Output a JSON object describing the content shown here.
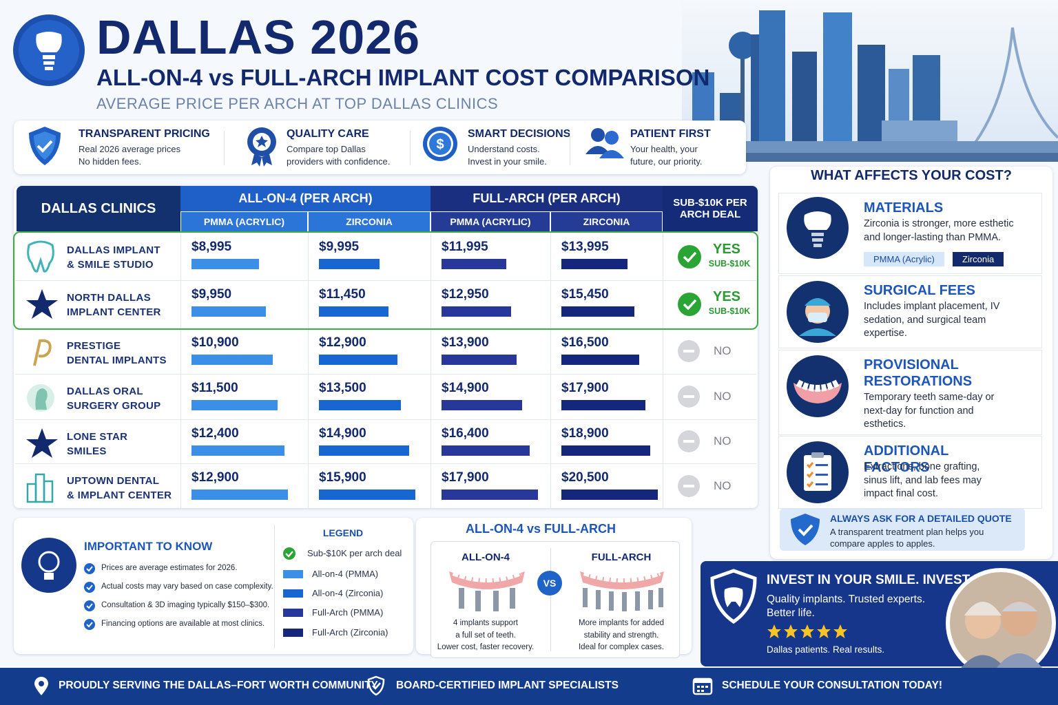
{
  "header": {
    "title": "DALLAS 2026",
    "subtitle": "ALL-ON-4 vs FULL-ARCH IMPLANT COST COMPARISON",
    "tagline": "AVERAGE PRICE PER ARCH AT TOP DALLAS CLINICS"
  },
  "features": [
    {
      "title": "TRANSPARENT PRICING",
      "lines": [
        "Real 2026 average prices",
        "No hidden fees."
      ]
    },
    {
      "title": "QUALITY CARE",
      "lines": [
        "Compare top Dallas",
        "providers with confidence."
      ]
    },
    {
      "title": "SMART DECISIONS",
      "lines": [
        "Understand costs.",
        "Invest in your smile."
      ]
    },
    {
      "title": "PATIENT FIRST",
      "lines": [
        "Your health, your",
        "future, our priority."
      ]
    }
  ],
  "table": {
    "corner": "DALLAS CLINICS",
    "groups": [
      "ALL-ON-4 (PER ARCH)",
      "FULL-ARCH (PER ARCH)"
    ],
    "columns": [
      {
        "label": "PMMA (ACRYLIC)",
        "color": "#3b8fe6"
      },
      {
        "label": "ZIRCONIA",
        "color": "#1766d2"
      },
      {
        "label": "PMMA (ACRYLIC)",
        "color": "#27389a"
      },
      {
        "label": "ZIRCONIA",
        "color": "#15277c"
      }
    ],
    "deal_header": "SUB-$10K PER ARCH DEAL",
    "rows": [
      {
        "clinic": [
          "DALLAS IMPLANT",
          "& SMILE STUDIO"
        ],
        "prices": [
          {
            "value": 8995,
            "label": "$8,995"
          },
          {
            "value": 9995,
            "label": "$9,995"
          },
          {
            "value": 11995,
            "label": "$11,995"
          },
          {
            "value": 13995,
            "label": "$13,995"
          }
        ],
        "deal": "YES",
        "deal_note": "SUB-$10K"
      },
      {
        "clinic": [
          "NORTH DALLAS",
          "IMPLANT CENTER"
        ],
        "prices": [
          {
            "value": 9950,
            "label": "$9,950"
          },
          {
            "value": 11450,
            "label": "$11,450"
          },
          {
            "value": 12950,
            "label": "$12,950"
          },
          {
            "value": 15450,
            "label": "$15,450"
          }
        ],
        "deal": "YES",
        "deal_note": "SUB-$10K"
      },
      {
        "clinic": [
          "PRESTIGE",
          "DENTAL IMPLANTS"
        ],
        "prices": [
          {
            "value": 10900,
            "label": "$10,900"
          },
          {
            "value": 12900,
            "label": "$12,900"
          },
          {
            "value": 13900,
            "label": "$13,900"
          },
          {
            "value": 16500,
            "label": "$16,500"
          }
        ],
        "deal": "NO"
      },
      {
        "clinic": [
          "DALLAS ORAL",
          "SURGERY GROUP"
        ],
        "prices": [
          {
            "value": 11500,
            "label": "$11,500"
          },
          {
            "value": 13500,
            "label": "$13,500"
          },
          {
            "value": 14900,
            "label": "$14,900"
          },
          {
            "value": 17900,
            "label": "$17,900"
          }
        ],
        "deal": "NO"
      },
      {
        "clinic": [
          "LONE STAR",
          "SMILES"
        ],
        "prices": [
          {
            "value": 12400,
            "label": "$12,400"
          },
          {
            "value": 14900,
            "label": "$14,900"
          },
          {
            "value": 16400,
            "label": "$16,400"
          },
          {
            "value": 18900,
            "label": "$18,900"
          }
        ],
        "deal": "NO"
      },
      {
        "clinic": [
          "UPTOWN DENTAL",
          "& IMPLANT CENTER"
        ],
        "prices": [
          {
            "value": 12900,
            "label": "$12,900"
          },
          {
            "value": 15900,
            "label": "$15,900"
          },
          {
            "value": 17900,
            "label": "$17,900"
          },
          {
            "value": 20500,
            "label": "$20,500"
          }
        ],
        "deal": "NO"
      }
    ]
  },
  "factors": {
    "title": "WHAT AFFECTS YOUR COST?",
    "items": [
      {
        "title": "MATERIALS",
        "text": "Zirconia is stronger, more esthetic and longer-lasting than PMMA."
      },
      {
        "title": "SURGICAL FEES",
        "text": "Includes implant placement, IV sedation, and surgical team expertise."
      },
      {
        "title": "PROVISIONAL RESTORATIONS",
        "text": "Temporary teeth same-day or next-day for function and esthetics."
      },
      {
        "title": "ADDITIONAL FACTORS",
        "text": "Extractions, bone grafting, sinus lift, and lab fees may impact final cost."
      }
    ],
    "tags": [
      "PMMA (Acrylic)",
      "Zirconia"
    ],
    "quote": {
      "title": "ALWAYS ASK FOR A DETAILED QUOTE",
      "text": "A transparent treatment plan helps you compare apples to apples."
    }
  },
  "important": {
    "title": "IMPORTANT TO KNOW",
    "items": [
      "Prices are average estimates for 2026.",
      "Actual costs may vary based on case complexity.",
      "Consultation & 3D imaging typically $150–$300.",
      "Financing options are available at most clinics."
    ]
  },
  "legend": {
    "title": "LEGEND",
    "items": [
      "Sub-$10K per arch deal",
      "All-on-4 (PMMA)",
      "All-on-4 (Zirconia)",
      "Full-Arch (PMMA)",
      "Full-Arch (Zirconia)"
    ]
  },
  "compare": {
    "title": "ALL-ON-4 vs FULL-ARCH",
    "vs": "VS",
    "left": {
      "title": "ALL-ON-4",
      "lines": [
        "4 implants support",
        "a full set of teeth.",
        "Lower cost, faster recovery."
      ]
    },
    "right": {
      "title": "FULL-ARCH",
      "lines": [
        "More implants for added",
        "stability and strength.",
        "Ideal for complex cases."
      ]
    }
  },
  "promo": {
    "title": "INVEST IN YOUR SMILE. INVEST IN YOU.",
    "text": "Quality implants. Trusted experts. Better life.",
    "note": "Dallas patients. Real results."
  },
  "footer": [
    "PROUDLY SERVING THE DALLAS–FORT WORTH COMMUNITY",
    "BOARD-CERTIFIED IMPLANT SPECIALISTS",
    "SCHEDULE YOUR CONSULTATION TODAY!"
  ]
}
